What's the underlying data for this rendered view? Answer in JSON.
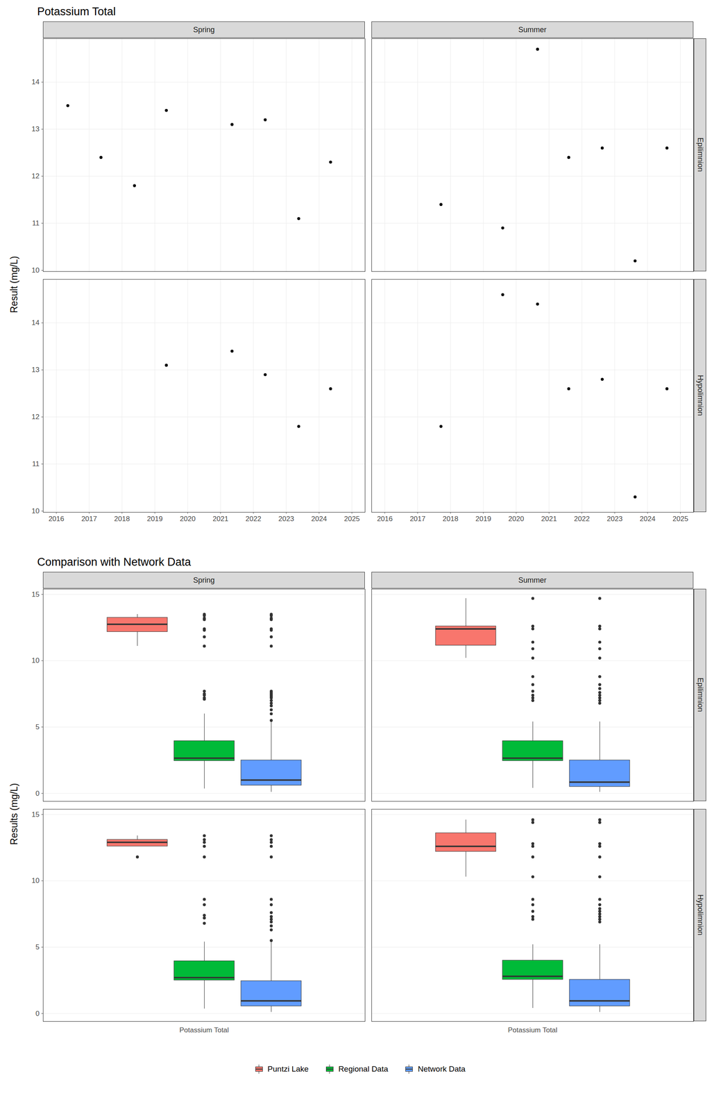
{
  "chart_data": [
    {
      "type": "scatter",
      "title": "Potassium Total",
      "y_label": "Result (mg/L)",
      "columns": [
        "Spring",
        "Summer"
      ],
      "rows": [
        "Epilimnion",
        "Hypolimnion"
      ],
      "xlim": [
        2015.6,
        2025.4
      ],
      "xticks": [
        2016,
        2017,
        2018,
        2019,
        2020,
        2021,
        2022,
        2023,
        2024,
        2025
      ],
      "ylim": [
        9.975,
        14.925
      ],
      "yticks": [
        10,
        11,
        12,
        13,
        14
      ],
      "grid": true,
      "color": "#000000",
      "panels": [
        {
          "column": "Spring",
          "row": "Epilimnion",
          "x": [
            2016.35,
            2017.36,
            2018.38,
            2019.35,
            2021.35,
            2022.36,
            2023.38,
            2024.35
          ],
          "values": [
            13.5,
            12.4,
            11.8,
            13.4,
            13.1,
            13.2,
            11.1,
            12.3
          ]
        },
        {
          "column": "Summer",
          "row": "Epilimnion",
          "x": [
            2017.71,
            2019.59,
            2020.65,
            2021.6,
            2022.62,
            2023.62,
            2024.59
          ],
          "values": [
            11.4,
            10.9,
            14.7,
            12.4,
            12.6,
            10.2,
            12.6
          ]
        },
        {
          "column": "Spring",
          "row": "Hypolimnion",
          "x": [
            2019.35,
            2021.35,
            2022.36,
            2023.38,
            2024.35
          ],
          "values": [
            13.1,
            13.4,
            12.9,
            11.8,
            12.6
          ]
        },
        {
          "column": "Summer",
          "row": "Hypolimnion",
          "x": [
            2017.71,
            2019.59,
            2020.65,
            2021.6,
            2022.62,
            2023.62,
            2024.59
          ],
          "values": [
            11.8,
            14.6,
            14.4,
            12.6,
            12.8,
            10.3,
            12.6
          ]
        }
      ]
    },
    {
      "type": "box",
      "title": "Comparison with Network Data",
      "y_label": "Results (mg/L)",
      "categories": [
        "Potassium Total"
      ],
      "columns": [
        "Spring",
        "Summer"
      ],
      "rows": [
        "Epilimnion",
        "Hypolimnion"
      ],
      "ylim": [
        -0.6,
        15.4
      ],
      "yticks": [
        0,
        5,
        10,
        15
      ],
      "grid": true,
      "legend": "bottom",
      "series": [
        {
          "name": "Puntzi Lake",
          "color": "#F8766D"
        },
        {
          "name": "Regional Data",
          "color": "#00BA38"
        },
        {
          "name": "Network Data",
          "color": "#619CFF"
        }
      ],
      "panels": [
        {
          "column": "Spring",
          "row": "Epilimnion",
          "boxes": [
            {
              "name": "Puntzi Lake",
              "min": 11.1,
              "q1": 12.175,
              "median": 12.75,
              "q3": 13.25,
              "max": 13.5,
              "outliers": []
            },
            {
              "name": "Regional Data",
              "min": 0.35,
              "q1": 2.45,
              "median": 2.65,
              "q3": 3.95,
              "max": 6.0,
              "outliers": [
                13.5,
                13.4,
                13.2,
                13.1,
                12.4,
                12.3,
                11.8,
                11.1,
                7.7,
                7.5,
                7.4,
                7.2,
                7.1
              ]
            },
            {
              "name": "Network Data",
              "min": 0.1,
              "q1": 0.6,
              "median": 1.0,
              "q3": 2.5,
              "max": 5.4,
              "outliers": [
                13.5,
                13.4,
                13.2,
                13.1,
                12.4,
                12.3,
                11.8,
                11.1,
                7.7,
                7.6,
                7.5,
                7.4,
                7.3,
                7.2,
                7.0,
                6.8,
                6.6,
                6.3,
                6.0,
                5.5
              ]
            }
          ]
        },
        {
          "column": "Summer",
          "row": "Epilimnion",
          "boxes": [
            {
              "name": "Puntzi Lake",
              "min": 10.2,
              "q1": 11.15,
              "median": 12.4,
              "q3": 12.6,
              "max": 14.7,
              "outliers": []
            },
            {
              "name": "Regional Data",
              "min": 0.4,
              "q1": 2.45,
              "median": 2.65,
              "q3": 3.95,
              "max": 5.4,
              "outliers": [
                14.7,
                12.6,
                12.4,
                11.4,
                10.9,
                10.2,
                8.8,
                8.2,
                7.7,
                7.4,
                7.2,
                7.0
              ]
            },
            {
              "name": "Network Data",
              "min": 0.1,
              "q1": 0.5,
              "median": 0.85,
              "q3": 2.5,
              "max": 5.4,
              "outliers": [
                14.7,
                12.6,
                12.4,
                11.4,
                10.9,
                10.2,
                8.8,
                8.2,
                7.9,
                7.6,
                7.4,
                7.2,
                7.0,
                6.8
              ]
            }
          ]
        },
        {
          "column": "Spring",
          "row": "Hypolimnion",
          "boxes": [
            {
              "name": "Puntzi Lake",
              "min": 12.6,
              "q1": 12.6,
              "median": 12.9,
              "q3": 13.1,
              "max": 13.4,
              "outliers": [
                11.8
              ]
            },
            {
              "name": "Regional Data",
              "min": 0.35,
              "q1": 2.5,
              "median": 2.7,
              "q3": 3.95,
              "max": 5.4,
              "outliers": [
                13.4,
                13.1,
                12.9,
                12.6,
                11.8,
                8.6,
                8.2,
                7.4,
                7.2,
                6.8
              ]
            },
            {
              "name": "Network Data",
              "min": 0.1,
              "q1": 0.55,
              "median": 0.95,
              "q3": 2.45,
              "max": 5.4,
              "outliers": [
                13.4,
                13.1,
                12.9,
                12.6,
                11.8,
                8.6,
                8.2,
                7.6,
                7.3,
                7.1,
                6.9,
                6.6,
                6.3,
                5.5
              ]
            }
          ]
        },
        {
          "column": "Summer",
          "row": "Hypolimnion",
          "boxes": [
            {
              "name": "Puntzi Lake",
              "min": 10.3,
              "q1": 12.2,
              "median": 12.6,
              "q3": 13.6,
              "max": 14.6,
              "outliers": []
            },
            {
              "name": "Regional Data",
              "min": 0.4,
              "q1": 2.55,
              "median": 2.8,
              "q3": 4.0,
              "max": 5.2,
              "outliers": [
                14.6,
                14.4,
                12.8,
                12.6,
                11.8,
                10.3,
                8.6,
                8.2,
                7.7,
                7.3,
                7.1
              ]
            },
            {
              "name": "Network Data",
              "min": 0.1,
              "q1": 0.55,
              "median": 0.95,
              "q3": 2.55,
              "max": 5.2,
              "outliers": [
                14.6,
                14.4,
                12.8,
                12.6,
                11.8,
                10.3,
                8.6,
                8.2,
                7.9,
                7.7,
                7.5,
                7.3,
                7.1,
                6.9
              ]
            }
          ]
        }
      ]
    }
  ]
}
